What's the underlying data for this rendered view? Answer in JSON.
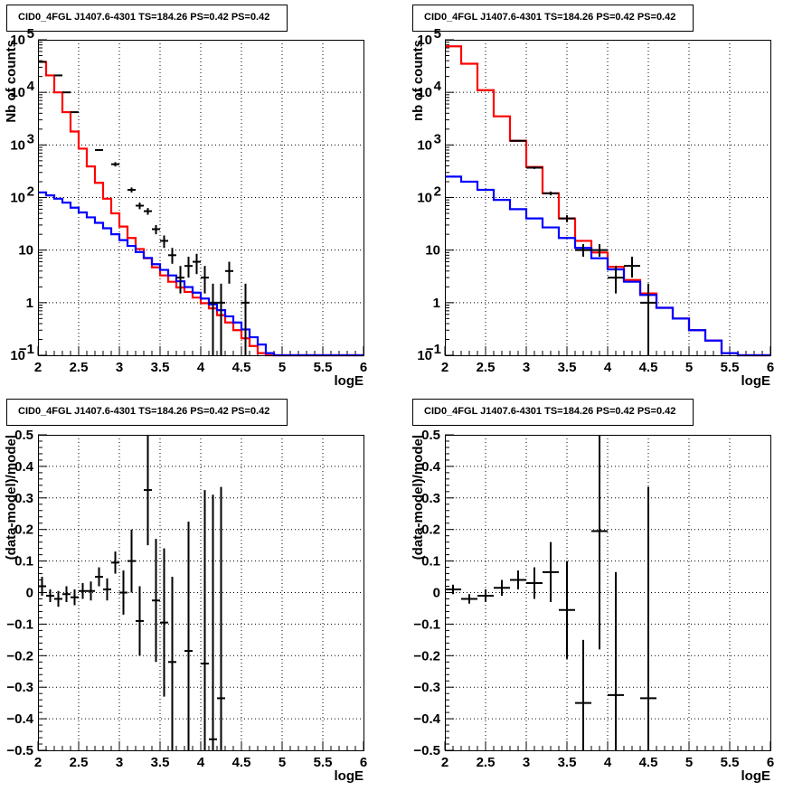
{
  "chart_data": [
    {
      "id": "p1",
      "type": "line",
      "title": "CID0_4FGL J1407.6-4301 TS=184.26 PS=0.42 PS=0.42",
      "xlabel": "logE",
      "ylabel": "Nb of counts",
      "xlim": [
        2,
        6
      ],
      "ylim": [
        0.1,
        100000
      ],
      "log_y": true,
      "grid": true,
      "x_ticks": [
        "2",
        "2.5",
        "3",
        "3.5",
        "4",
        "4.5",
        "5",
        "5.5",
        "6"
      ],
      "y_ticks": [
        {
          "value": 0.1,
          "label": "10",
          "exp": "−1"
        },
        {
          "value": 1,
          "label": "1",
          "exp": ""
        },
        {
          "value": 10,
          "label": "10",
          "exp": ""
        },
        {
          "value": 100,
          "label": "10",
          "exp": "2"
        },
        {
          "value": 1000,
          "label": "10",
          "exp": "3"
        },
        {
          "value": 10000,
          "label": "10",
          "exp": "4"
        },
        {
          "value": 100000,
          "label": "10",
          "exp": "5"
        }
      ],
      "bin_edges": [
        2.0,
        2.1,
        2.2,
        2.3,
        2.4,
        2.5,
        2.6,
        2.7,
        2.8,
        2.9,
        3.0,
        3.1,
        3.2,
        3.3,
        3.4,
        3.5,
        3.6,
        3.7,
        3.8,
        3.9,
        4.0,
        4.1,
        4.2,
        4.3,
        4.4,
        4.5,
        4.6,
        4.7,
        4.8,
        4.9,
        5.0,
        5.1,
        5.2,
        5.3,
        5.4,
        5.5,
        5.6,
        5.7,
        5.8,
        5.9,
        6.0
      ],
      "series": [
        {
          "role": "model_total",
          "color": "#ff0000",
          "values": [
            38000,
            21000,
            10000,
            4200,
            1800,
            850,
            390,
            190,
            95,
            50,
            28,
            17,
            10.5,
            7.0,
            4.7,
            3.3,
            2.5,
            1.95,
            1.6,
            1.25,
            0.98,
            0.78,
            0.58,
            0.42,
            0.3,
            0.21,
            0.15,
            0.11,
            0.1,
            0.1,
            0.1,
            0.1,
            0.1,
            0.1,
            0.1,
            0.1,
            0.1,
            0.1,
            0.1,
            0.1
          ]
        },
        {
          "role": "model_component",
          "color": "#0000ff",
          "values": [
            125,
            110,
            95,
            80,
            64,
            52,
            42,
            33,
            26,
            20,
            15.5,
            12,
            9.2,
            7.1,
            5.4,
            4.2,
            3.3,
            2.55,
            1.98,
            1.55,
            1.2,
            0.93,
            0.72,
            0.55,
            0.42,
            0.31,
            0.22,
            0.16,
            0.11,
            0.1,
            0.1,
            0.1,
            0.1,
            0.1,
            0.1,
            0.1,
            0.1,
            0.1,
            0.1,
            0.1
          ]
        }
      ],
      "points": [
        {
          "x": 2.05,
          "y": 38000,
          "ylo": 37600,
          "yhi": 38400
        },
        {
          "x": 2.25,
          "y": 21000,
          "ylo": 20700,
          "yhi": 21300
        },
        {
          "x": 2.35,
          "y": 10000,
          "ylo": 9800,
          "yhi": 10200
        },
        {
          "x": 2.45,
          "y": 4200,
          "ylo": 4070,
          "yhi": 4330
        },
        {
          "x": 2.75,
          "y": 800,
          "ylo": 770,
          "yhi": 830
        },
        {
          "x": 2.95,
          "y": 430,
          "ylo": 390,
          "yhi": 470
        },
        {
          "x": 3.15,
          "y": 140,
          "ylo": 125,
          "yhi": 155
        },
        {
          "x": 3.25,
          "y": 70,
          "ylo": 60,
          "yhi": 80
        },
        {
          "x": 3.35,
          "y": 55,
          "ylo": 47,
          "yhi": 63
        },
        {
          "x": 3.45,
          "y": 25,
          "ylo": 20,
          "yhi": 30
        },
        {
          "x": 3.55,
          "y": 15,
          "ylo": 11,
          "yhi": 19
        },
        {
          "x": 3.65,
          "y": 8,
          "ylo": 5.5,
          "yhi": 11
        },
        {
          "x": 3.75,
          "y": 3,
          "ylo": 1.5,
          "yhi": 5
        },
        {
          "x": 3.85,
          "y": 5,
          "ylo": 3,
          "yhi": 7.5
        },
        {
          "x": 3.95,
          "y": 6,
          "ylo": 3.5,
          "yhi": 8.5
        },
        {
          "x": 4.05,
          "y": 3,
          "ylo": 1.5,
          "yhi": 5
        },
        {
          "x": 4.15,
          "y": 1,
          "ylo": 0.1,
          "yhi": 2.3
        },
        {
          "x": 4.25,
          "y": 1,
          "ylo": 0.1,
          "yhi": 2.3
        },
        {
          "x": 4.35,
          "y": 4,
          "ylo": 2.3,
          "yhi": 6
        },
        {
          "x": 4.55,
          "y": 1,
          "ylo": 0.1,
          "yhi": 2.3
        }
      ]
    },
    {
      "id": "p2",
      "type": "line",
      "title": "CID0_4FGL J1407.6-4301 TS=184.26 PS=0.42 PS=0.42",
      "xlabel": "logE",
      "ylabel": "nb of counts",
      "xlim": [
        2,
        6
      ],
      "ylim": [
        0.1,
        100000
      ],
      "log_y": true,
      "grid": true,
      "x_ticks": [
        "2",
        "2.5",
        "3",
        "3.5",
        "4",
        "4.5",
        "5",
        "5.5",
        "6"
      ],
      "y_ticks": [
        {
          "value": 0.1,
          "label": "10",
          "exp": "−1"
        },
        {
          "value": 1,
          "label": "1",
          "exp": ""
        },
        {
          "value": 10,
          "label": "10",
          "exp": ""
        },
        {
          "value": 100,
          "label": "10",
          "exp": "2"
        },
        {
          "value": 1000,
          "label": "10",
          "exp": "3"
        },
        {
          "value": 10000,
          "label": "10",
          "exp": "4"
        },
        {
          "value": 100000,
          "label": "10",
          "exp": "5"
        }
      ],
      "bin_edges": [
        2.0,
        2.2,
        2.4,
        2.6,
        2.8,
        3.0,
        3.2,
        3.4,
        3.6,
        3.8,
        4.0,
        4.2,
        4.4,
        4.6,
        4.8,
        5.0,
        5.2,
        5.4,
        5.6,
        5.8,
        6.0
      ],
      "series": [
        {
          "role": "model_total",
          "color": "#ff0000",
          "values": [
            75000,
            35000,
            11000,
            3500,
            1200,
            380,
            120,
            40,
            15,
            9,
            4.8,
            2.7,
            1.5,
            0.8,
            0.5,
            0.3,
            0.19,
            0.11,
            0.1,
            0.1
          ]
        },
        {
          "role": "model_component",
          "color": "#0000ff",
          "values": [
            250,
            200,
            140,
            90,
            60,
            40,
            27,
            17,
            11,
            7,
            4.3,
            2.5,
            1.4,
            0.8,
            0.5,
            0.3,
            0.19,
            0.11,
            0.1,
            0.1
          ]
        }
      ],
      "points": [
        {
          "x": 2.9,
          "y": 1200,
          "ylo": 1160,
          "yhi": 1240
        },
        {
          "x": 3.1,
          "y": 370,
          "ylo": 350,
          "yhi": 390
        },
        {
          "x": 3.3,
          "y": 120,
          "ylo": 110,
          "yhi": 130
        },
        {
          "x": 3.5,
          "y": 40,
          "ylo": 34,
          "yhi": 46
        },
        {
          "x": 3.7,
          "y": 10,
          "ylo": 7.5,
          "yhi": 13
        },
        {
          "x": 3.9,
          "y": 10,
          "ylo": 7.5,
          "yhi": 13
        },
        {
          "x": 4.1,
          "y": 3,
          "ylo": 1.5,
          "yhi": 5
        },
        {
          "x": 4.3,
          "y": 5,
          "ylo": 3,
          "yhi": 7.5
        },
        {
          "x": 4.5,
          "y": 1,
          "ylo": 0.1,
          "yhi": 2.3
        }
      ]
    },
    {
      "id": "p3",
      "type": "scatter",
      "title": "CID0_4FGL J1407.6-4301 TS=184.26 PS=0.42 PS=0.42",
      "xlabel": "logE",
      "ylabel": "(data-model)/model",
      "xlim": [
        2,
        6
      ],
      "ylim": [
        -0.5,
        0.5
      ],
      "log_y": false,
      "grid": true,
      "x_ticks": [
        "2",
        "2.5",
        "3",
        "3.5",
        "4",
        "4.5",
        "5",
        "5.5",
        "6"
      ],
      "y_ticks": [
        {
          "value": -0.5,
          "label": "−0.5",
          "exp": ""
        },
        {
          "value": -0.4,
          "label": "−0.4",
          "exp": ""
        },
        {
          "value": -0.3,
          "label": "−0.3",
          "exp": ""
        },
        {
          "value": -0.2,
          "label": "−0.2",
          "exp": ""
        },
        {
          "value": -0.1,
          "label": "−0.1",
          "exp": ""
        },
        {
          "value": 0,
          "label": "0",
          "exp": ""
        },
        {
          "value": 0.1,
          "label": "0.1",
          "exp": ""
        },
        {
          "value": 0.2,
          "label": "0.2",
          "exp": ""
        },
        {
          "value": 0.3,
          "label": "0.3",
          "exp": ""
        },
        {
          "value": 0.4,
          "label": "0.4",
          "exp": ""
        },
        {
          "value": 0.5,
          "label": "0.5",
          "exp": ""
        }
      ],
      "xhalf": 0.05,
      "points": [
        {
          "x": 2.05,
          "y": 0.02,
          "ylo": -0.01,
          "yhi": 0.05
        },
        {
          "x": 2.15,
          "y": -0.01,
          "ylo": -0.03,
          "yhi": 0.01
        },
        {
          "x": 2.25,
          "y": -0.02,
          "ylo": -0.045,
          "yhi": 0.005
        },
        {
          "x": 2.35,
          "y": -0.005,
          "ylo": -0.03,
          "yhi": 0.02
        },
        {
          "x": 2.45,
          "y": -0.015,
          "ylo": -0.04,
          "yhi": 0.01
        },
        {
          "x": 2.55,
          "y": 0.005,
          "ylo": -0.02,
          "yhi": 0.03
        },
        {
          "x": 2.65,
          "y": 0.005,
          "ylo": -0.025,
          "yhi": 0.035
        },
        {
          "x": 2.75,
          "y": 0.05,
          "ylo": 0.02,
          "yhi": 0.08
        },
        {
          "x": 2.85,
          "y": 0.01,
          "ylo": -0.025,
          "yhi": 0.045
        },
        {
          "x": 2.95,
          "y": 0.095,
          "ylo": 0.06,
          "yhi": 0.13
        },
        {
          "x": 3.05,
          "y": 0.0,
          "ylo": -0.07,
          "yhi": 0.07
        },
        {
          "x": 3.15,
          "y": 0.1,
          "ylo": 0.0,
          "yhi": 0.2
        },
        {
          "x": 3.25,
          "y": -0.09,
          "ylo": -0.2,
          "yhi": 0.02
        },
        {
          "x": 3.35,
          "y": 0.325,
          "ylo": 0.15,
          "yhi": 0.5
        },
        {
          "x": 3.45,
          "y": -0.025,
          "ylo": -0.22,
          "yhi": 0.17
        },
        {
          "x": 3.55,
          "y": -0.095,
          "ylo": -0.33,
          "yhi": 0.14
        },
        {
          "x": 3.65,
          "y": -0.22,
          "ylo": -0.5,
          "yhi": 0.05
        },
        {
          "x": 3.85,
          "y": -0.185,
          "ylo": -0.5,
          "yhi": 0.225
        },
        {
          "x": 4.05,
          "y": -0.225,
          "ylo": -0.5,
          "yhi": 0.325
        },
        {
          "x": 4.15,
          "y": -0.465,
          "ylo": -0.5,
          "yhi": 0.31
        },
        {
          "x": 4.25,
          "y": -0.335,
          "ylo": -0.5,
          "yhi": 0.335
        }
      ]
    },
    {
      "id": "p4",
      "type": "scatter",
      "title": "CID0_4FGL J1407.6-4301 TS=184.26 PS=0.42 PS=0.42",
      "xlabel": "logE",
      "ylabel": "(data-model)/model",
      "xlim": [
        2,
        6
      ],
      "ylim": [
        -0.5,
        0.5
      ],
      "log_y": false,
      "grid": true,
      "x_ticks": [
        "2",
        "2.5",
        "3",
        "3.5",
        "4",
        "4.5",
        "5",
        "5.5",
        "6"
      ],
      "y_ticks": [
        {
          "value": -0.5,
          "label": "−0.5",
          "exp": ""
        },
        {
          "value": -0.4,
          "label": "−0.4",
          "exp": ""
        },
        {
          "value": -0.3,
          "label": "−0.3",
          "exp": ""
        },
        {
          "value": -0.2,
          "label": "−0.2",
          "exp": ""
        },
        {
          "value": -0.1,
          "label": "−0.1",
          "exp": ""
        },
        {
          "value": 0,
          "label": "0",
          "exp": ""
        },
        {
          "value": 0.1,
          "label": "0.1",
          "exp": ""
        },
        {
          "value": 0.2,
          "label": "0.2",
          "exp": ""
        },
        {
          "value": 0.3,
          "label": "0.3",
          "exp": ""
        },
        {
          "value": 0.4,
          "label": "0.4",
          "exp": ""
        },
        {
          "value": 0.5,
          "label": "0.5",
          "exp": ""
        }
      ],
      "xhalf": 0.1,
      "points": [
        {
          "x": 2.1,
          "y": 0.01,
          "ylo": -0.005,
          "yhi": 0.025
        },
        {
          "x": 2.3,
          "y": -0.02,
          "ylo": -0.035,
          "yhi": -0.005
        },
        {
          "x": 2.5,
          "y": -0.01,
          "ylo": -0.03,
          "yhi": 0.01
        },
        {
          "x": 2.7,
          "y": 0.015,
          "ylo": -0.01,
          "yhi": 0.04
        },
        {
          "x": 2.9,
          "y": 0.04,
          "ylo": 0.01,
          "yhi": 0.07
        },
        {
          "x": 3.1,
          "y": 0.03,
          "ylo": -0.02,
          "yhi": 0.08
        },
        {
          "x": 3.3,
          "y": 0.065,
          "ylo": -0.03,
          "yhi": 0.16
        },
        {
          "x": 3.5,
          "y": -0.055,
          "ylo": -0.21,
          "yhi": 0.1
        },
        {
          "x": 3.7,
          "y": -0.35,
          "ylo": -0.5,
          "yhi": -0.15
        },
        {
          "x": 3.9,
          "y": 0.195,
          "ylo": -0.18,
          "yhi": 0.5
        },
        {
          "x": 4.1,
          "y": -0.325,
          "ylo": -0.5,
          "yhi": 0.065
        },
        {
          "x": 4.5,
          "y": -0.335,
          "ylo": -0.5,
          "yhi": 0.335
        }
      ]
    }
  ]
}
